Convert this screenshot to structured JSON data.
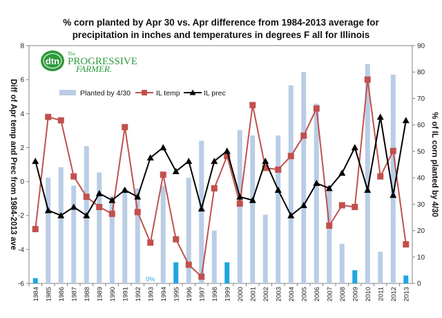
{
  "chart_data": {
    "type": "bar+line",
    "title_lines": [
      "% corn planted by Apr 30 vs. Apr difference from 1984-2013 average for",
      "precipitation in inches and temperatures in degrees F all for Illinois"
    ],
    "ylabel_left": "Diff of Apr temp and Prec from 1984-2013 ave",
    "ylabel_right": "% of IL corn planted by 4/30",
    "ylim_left": [
      -6,
      8
    ],
    "ylim_right": [
      0,
      90
    ],
    "yticks_left": [
      "-6",
      "-4",
      "-2",
      "0",
      "2",
      "4",
      "6",
      "8"
    ],
    "yticks_right": [
      "0",
      "10",
      "20",
      "30",
      "40",
      "50",
      "60",
      "70",
      "80",
      "90"
    ],
    "categories": [
      "1984",
      "1985",
      "1986",
      "1987",
      "1988",
      "1989",
      "1990",
      "1991",
      "1992",
      "1993",
      "1994",
      "1995",
      "1996",
      "1997",
      "1998",
      "1999",
      "2000",
      "2001",
      "2002",
      "2003",
      "2004",
      "2005",
      "2006",
      "2007",
      "2008",
      "2009",
      "2010",
      "2011",
      "2012",
      "2013"
    ],
    "legend_position": "upper-left",
    "grid": false,
    "series": [
      {
        "name": "Planted by 4/30",
        "kind": "bar",
        "axis": "right",
        "color": "#b9cde5",
        "low_color": "#1ea6e0",
        "values": [
          2,
          40,
          44,
          37,
          52,
          42,
          33,
          36,
          36,
          0,
          37,
          8,
          40,
          54,
          20,
          8,
          58,
          56,
          26,
          56,
          75,
          80,
          68,
          37,
          15,
          5,
          83,
          12,
          79,
          3
        ]
      },
      {
        "name": "IL temp",
        "kind": "line",
        "axis": "left",
        "color": "#c0504d",
        "marker": "square",
        "values": [
          -2.8,
          3.8,
          3.6,
          0.3,
          -0.9,
          -1.5,
          -1.9,
          3.2,
          -1.8,
          -3.6,
          0.4,
          -3.4,
          -4.9,
          -5.6,
          -0.4,
          1.5,
          -1.3,
          4.5,
          0.8,
          0.7,
          1.5,
          2.7,
          4.3,
          -2.6,
          -1.4,
          -1.5,
          6.0,
          0.3,
          1.8,
          -3.7
        ]
      },
      {
        "name": "IL prec",
        "kind": "line",
        "axis": "left",
        "color": "#000000",
        "marker": "triangle",
        "values": [
          1.2,
          -1.7,
          -2.0,
          -1.5,
          -2.0,
          -0.7,
          -1.1,
          -0.5,
          -0.9,
          1.4,
          2.0,
          0.6,
          1.2,
          -1.6,
          1.2,
          1.8,
          -0.9,
          -1.1,
          1.2,
          -0.5,
          -2.0,
          -1.4,
          -0.1,
          -0.4,
          0.5,
          2.0,
          -0.5,
          3.8,
          -0.8,
          3.6
        ]
      }
    ],
    "annotations": [
      {
        "text": "0%",
        "category": "1993"
      }
    ]
  },
  "logo": {
    "dtn": "dtn",
    "the": "The",
    "name_line1": "PROGRESSIVE",
    "name_line2": "FARMER."
  },
  "colors": {
    "bar": "#b9cde5",
    "bar_low": "#1ea6e0",
    "temp": "#c0504d",
    "prec": "#000000",
    "logo_green": "#2e9a3c"
  }
}
